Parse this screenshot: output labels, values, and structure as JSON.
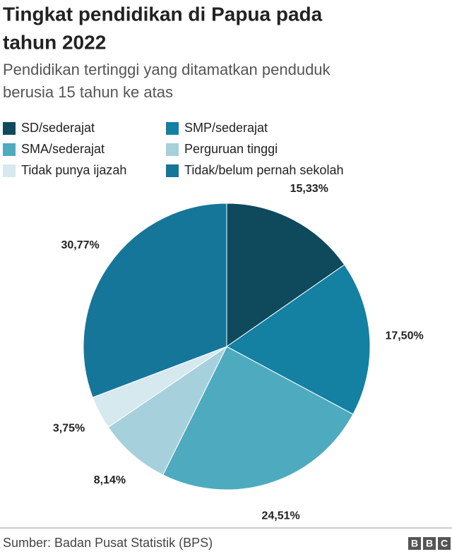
{
  "chart_data": {
    "type": "pie",
    "title": [
      "Tingkat pendidikan di Papua pada",
      "tahun 2022"
    ],
    "subtitle": [
      "Pendidikan tertinggi yang ditamatkan penduduk",
      "berusia 15 tahun ke atas"
    ],
    "categories": [
      "SD/sederajat",
      "SMP/sederajat",
      "SMA/sederajat",
      "Perguruan tinggi",
      "Tidak punya ijazah",
      "Tidak/belum pernah sekolah"
    ],
    "values": [
      15.33,
      17.5,
      24.51,
      8.14,
      3.75,
      30.77
    ],
    "value_labels": [
      "15,33%",
      "17,50%",
      "24,51%",
      "8,14%",
      "3,75%",
      "30,77%"
    ],
    "colors": [
      "#0e4a5c",
      "#1480a2",
      "#4eabbf",
      "#a6d0dc",
      "#d5e9ee",
      "#15769a"
    ],
    "source": "Sumber: Badan Pusat Statistik (BPS)",
    "logo": [
      "B",
      "B",
      "C"
    ]
  }
}
